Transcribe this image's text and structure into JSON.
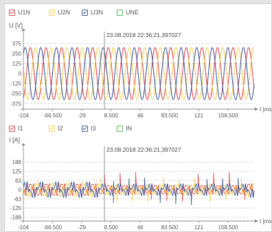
{
  "colors": {
    "u1": "#e0474c",
    "u2": "#f0d25a",
    "u3": "#3f5b9c",
    "une": "#5cb85c",
    "axis": "#8a8a8a",
    "grid": "#c8c8c8",
    "cursor": "#777777",
    "text": "#555555"
  },
  "chart_data": [
    {
      "type": "line",
      "legend": [
        {
          "label": "U1N",
          "color": "#e0474c",
          "checked": true
        },
        {
          "label": "U2N",
          "color": "#f0d25a",
          "checked": true
        },
        {
          "label": "U3N",
          "color": "#3f5b9c",
          "checked": true
        },
        {
          "label": "UNE",
          "color": "#5cb85c",
          "checked": false
        }
      ],
      "ylabel": "U [V]",
      "xlabel": "t [ms]",
      "cursor_x": 0,
      "cursor_label": "23.08.2018 22:36:21,397027",
      "xlim": [
        -104,
        192
      ],
      "ylim": [
        -420,
        440
      ],
      "x_ticks": [
        "-104",
        "-66.500",
        "-29",
        "8.500",
        "46",
        "83.500",
        "121",
        "158.500"
      ],
      "x_tick_values": [
        -104,
        -66.5,
        -29,
        8.5,
        46,
        83.5,
        121,
        158.5
      ],
      "y_ticks": [
        375,
        250,
        125,
        0,
        -125,
        -250,
        -375
      ],
      "y_tick_labels": [
        "375",
        "250",
        "125",
        "0",
        "-125",
        "-250",
        "-375"
      ],
      "series": [
        {
          "name": "U1N",
          "amplitude": 325,
          "frequency_hz": 50,
          "phase_deg": 0
        },
        {
          "name": "U2N",
          "amplitude": 325,
          "frequency_hz": 50,
          "phase_deg": -120
        },
        {
          "name": "U3N",
          "amplitude": 325,
          "frequency_hz": 50,
          "phase_deg": 120
        }
      ]
    },
    {
      "type": "line",
      "legend": [
        {
          "label": "I1",
          "color": "#e0474c",
          "checked": true
        },
        {
          "label": "I2",
          "color": "#f0d25a",
          "checked": true
        },
        {
          "label": "I3",
          "color": "#3f5b9c",
          "checked": true
        },
        {
          "label": "IN",
          "color": "#5cb85c",
          "checked": false
        }
      ],
      "ylabel": "I [A]",
      "xlabel": "t [ms]",
      "cursor_x": 0,
      "cursor_label": "23.08.2018 22:36:21,397027",
      "xlim": [
        -104,
        192
      ],
      "ylim": [
        -200,
        250
      ],
      "x_ticks": [
        "-104",
        "-66.500",
        "-29",
        "8.500",
        "46",
        "83.500",
        "121",
        "158.500"
      ],
      "x_tick_values": [
        -104,
        -66.5,
        -29,
        8.5,
        46,
        83.5,
        121,
        158.5
      ],
      "y_ticks": [
        188,
        125,
        63,
        0,
        -63,
        -125,
        -188
      ],
      "y_tick_labels": [
        "188",
        "125",
        "63",
        "0",
        "-63",
        "-125",
        "-188"
      ],
      "series": [
        {
          "name": "I1",
          "amplitude": 55,
          "frequency_hz": 50,
          "phase_deg": 0,
          "transient_peak": 120
        },
        {
          "name": "I2",
          "amplitude": 55,
          "frequency_hz": 50,
          "phase_deg": -120,
          "transient_peak": -100
        },
        {
          "name": "I3",
          "amplitude": 55,
          "frequency_hz": 50,
          "phase_deg": 120,
          "transient_peak": 110
        }
      ]
    }
  ]
}
